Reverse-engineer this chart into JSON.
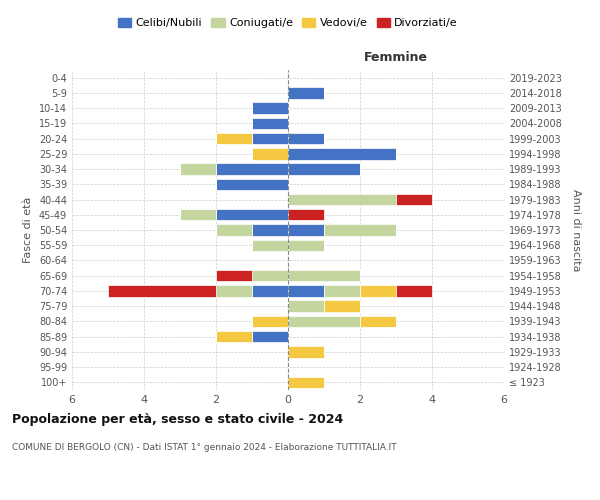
{
  "age_groups": [
    "100+",
    "95-99",
    "90-94",
    "85-89",
    "80-84",
    "75-79",
    "70-74",
    "65-69",
    "60-64",
    "55-59",
    "50-54",
    "45-49",
    "40-44",
    "35-39",
    "30-34",
    "25-29",
    "20-24",
    "15-19",
    "10-14",
    "5-9",
    "0-4"
  ],
  "birth_years": [
    "≤ 1923",
    "1924-1928",
    "1929-1933",
    "1934-1938",
    "1939-1943",
    "1944-1948",
    "1949-1953",
    "1954-1958",
    "1959-1963",
    "1964-1968",
    "1969-1973",
    "1974-1978",
    "1979-1983",
    "1984-1988",
    "1989-1993",
    "1994-1998",
    "1999-2003",
    "2004-2008",
    "2009-2013",
    "2014-2018",
    "2019-2023"
  ],
  "colors": {
    "celibi": "#4472C4",
    "coniugati": "#c5d5a0",
    "vedovi": "#f5c842",
    "divorziati": "#cc2222"
  },
  "males": {
    "celibi": [
      0,
      0,
      0,
      1,
      0,
      0,
      1,
      0,
      0,
      0,
      1,
      2,
      0,
      2,
      2,
      0,
      1,
      1,
      1,
      0,
      0
    ],
    "coniugati": [
      0,
      0,
      0,
      0,
      0,
      0,
      1,
      1,
      0,
      1,
      1,
      1,
      0,
      0,
      1,
      0,
      0,
      0,
      0,
      0,
      0
    ],
    "vedovi": [
      0,
      0,
      0,
      1,
      1,
      0,
      0,
      0,
      0,
      0,
      0,
      0,
      0,
      0,
      0,
      1,
      1,
      0,
      0,
      0,
      0
    ],
    "divorziati": [
      0,
      0,
      0,
      0,
      0,
      0,
      3,
      1,
      0,
      0,
      0,
      0,
      0,
      0,
      0,
      0,
      0,
      0,
      0,
      0,
      0
    ]
  },
  "females": {
    "celibi": [
      0,
      0,
      0,
      0,
      0,
      0,
      1,
      0,
      0,
      0,
      1,
      0,
      0,
      0,
      2,
      3,
      1,
      0,
      0,
      1,
      0
    ],
    "coniugati": [
      0,
      0,
      0,
      0,
      2,
      1,
      1,
      2,
      0,
      1,
      2,
      0,
      3,
      0,
      0,
      0,
      0,
      0,
      0,
      0,
      0
    ],
    "vedovi": [
      1,
      0,
      1,
      0,
      1,
      1,
      1,
      0,
      0,
      0,
      0,
      0,
      0,
      0,
      0,
      0,
      0,
      0,
      0,
      0,
      0
    ],
    "divorziati": [
      0,
      0,
      0,
      0,
      0,
      0,
      1,
      0,
      0,
      0,
      0,
      1,
      1,
      0,
      0,
      0,
      0,
      0,
      0,
      0,
      0
    ]
  },
  "xlim": 6,
  "title": "Popolazione per età, sesso e stato civile - 2024",
  "subtitle": "COMUNE DI BERGOLO (CN) - Dati ISTAT 1° gennaio 2024 - Elaborazione TUTTITALIA.IT",
  "ylabel_left": "Fasce di età",
  "ylabel_right": "Anni di nascita",
  "xlabel_right": "Femmine",
  "legend_labels": [
    "Celibi/Nubili",
    "Coniugati/e",
    "Vedovi/e",
    "Divorziati/e"
  ],
  "background_color": "#ffffff",
  "grid_color": "#cccccc"
}
